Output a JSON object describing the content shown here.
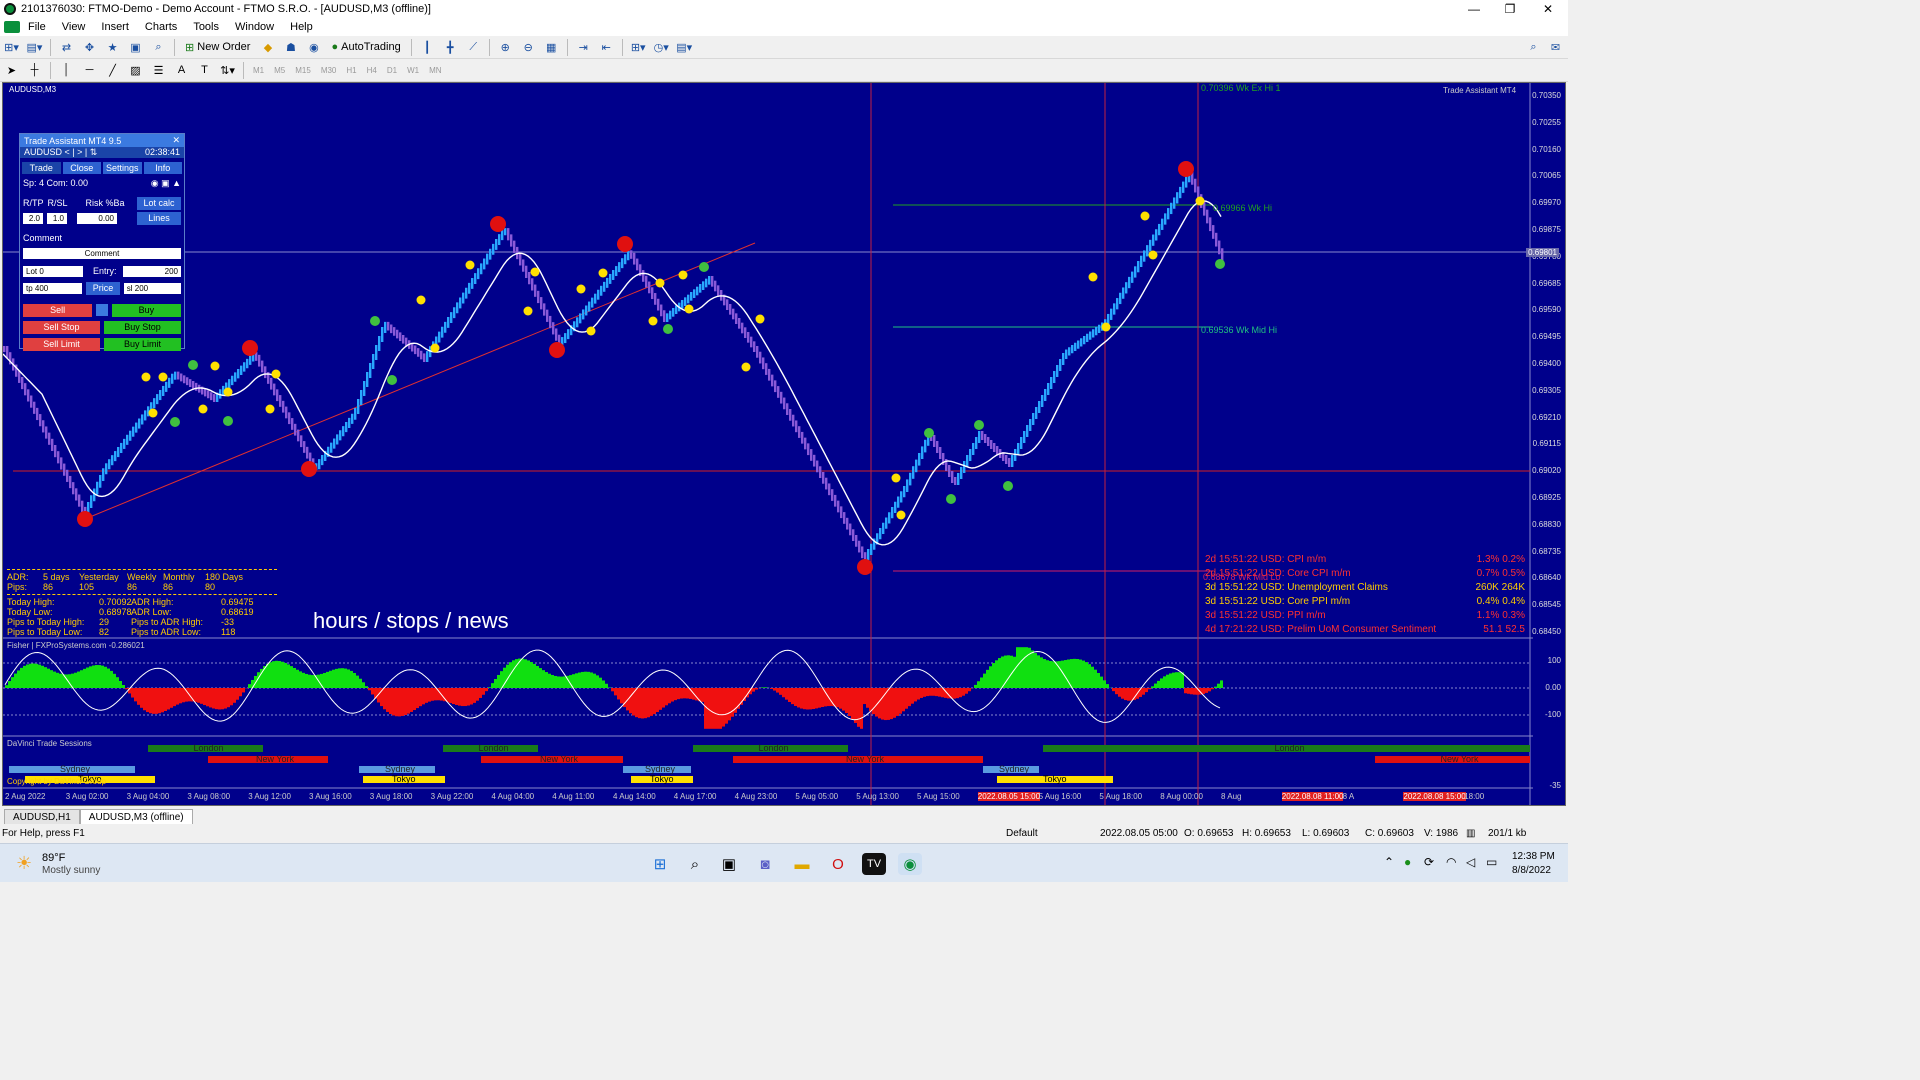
{
  "window": {
    "title": "2101376030: FTMO-Demo - Demo Account - FTMO S.R.O. - [AUDUSD,M3 (offline)]",
    "minimize": "—",
    "restore": "❐",
    "close": "✕"
  },
  "menu": [
    "File",
    "View",
    "Insert",
    "Charts",
    "Tools",
    "Window",
    "Help"
  ],
  "toolbar": {
    "new_order": "New Order",
    "autotrading": "AutoTrading"
  },
  "timeframes": [
    "M1",
    "M5",
    "M15",
    "M30",
    "H1",
    "H4",
    "D1",
    "W1",
    "MN"
  ],
  "chart": {
    "symbol_label": "AUDUSD,M3",
    "indicator_label": "Trade Assistant MT4",
    "watermark": "hours / stops / news",
    "price_axis": [
      "0.70350",
      "0.70255",
      "0.70160",
      "0.70065",
      "0.69970",
      "0.69875",
      "0.69780",
      "0.69685",
      "0.69590",
      "0.69495",
      "0.69400",
      "0.69305",
      "0.69210",
      "0.69115",
      "0.69020",
      "0.68925",
      "0.68830",
      "0.68735",
      "0.68640",
      "0.68545",
      "0.68450"
    ],
    "current_price": "0.69801",
    "levels": {
      "wk_hi": "0.69966 Wk Hi",
      "wk_mid_hi": "0.69536 Wk Mid Hi",
      "wk_ex_hi": "0.70396 Wk Ex Hi 1",
      "wk_mid_lo": "0.68678 Wk Mid Lo"
    },
    "time_axis": [
      "2 Aug 2022",
      "3 Aug 02:00",
      "3 Aug 04:00",
      "3 Aug 08:00",
      "3 Aug 12:00",
      "3 Aug 16:00",
      "3 Aug 18:00",
      "3 Aug 22:00",
      "4 Aug 04:00",
      "4 Aug 11:00",
      "4 Aug 14:00",
      "4 Aug 17:00",
      "4 Aug 23:00",
      "5 Aug 05:00",
      "5 Aug 13:00",
      "5 Aug 15:00",
      "2022.08.05 15:00",
      "5 Aug 16:00",
      "5 Aug 18:00",
      "8 Aug 00:00",
      "8 Aug",
      "2022.08.08 11:00",
      "8 A",
      "2022.08.08 15:00",
      "18:00"
    ],
    "fisher_label": "Fisher | FXProSystems.com -0.286021",
    "fisher_axis": [
      "100",
      "0.00",
      "-100"
    ],
    "sessions_label": "DaVinci Trade Sessions",
    "sessions": {
      "london": "London",
      "newyork": "New York",
      "sydney": "Sydney",
      "tokyo": "Tokyo"
    },
    "copyright": "Copyright by DaVinci Group",
    "sessions_axis": "-35"
  },
  "trade_assistant": {
    "title": "Trade Assistant MT4 9.5",
    "close": "✕",
    "symbol": "AUDUSD",
    "nav": "< | > | ⇅",
    "time": "02:38:41",
    "tabs": [
      "Trade",
      "Close",
      "Settings",
      "Info"
    ],
    "spread": "Sp: 4  Com: 0.00",
    "rtp": "R/TP",
    "rsl": "R/SL",
    "risk": "Risk %Ba",
    "rtp_val": "2.0",
    "rsl_val": "1.0",
    "risk_val": "0.00",
    "lot_calc": "Lot calc",
    "lines": "Lines",
    "comment_label": "Comment",
    "comment_value": "Comment",
    "lot_label": "Lot",
    "lot_value": "0",
    "entry_label": "Entry:",
    "entry_value": "200",
    "tp_label": "tp",
    "tp_value": "400",
    "price_btn": "Price",
    "sl_label": "sl",
    "sl_value": "200",
    "sell": "Sell",
    "buy": "Buy",
    "sell_stop": "Sell Stop",
    "buy_stop": "Buy Stop",
    "sell_limit": "Sell Limit",
    "buy_limit": "Buy Limit"
  },
  "adr": {
    "header": [
      "ADR:",
      "5 days",
      "Yesterday",
      "Weekly",
      "Monthly",
      "180 Days"
    ],
    "pips": [
      "Pips:",
      "86",
      "105",
      "86",
      "86",
      "80"
    ],
    "rows": [
      [
        "Today High:",
        "0.70092",
        "ADR High:",
        "0.69475"
      ],
      [
        "Today Low:",
        "0.68978",
        "ADR Low:",
        "0.68619"
      ],
      [
        "Pips to Today High:",
        "29",
        "Pips to ADR High:",
        "-33"
      ],
      [
        "Pips to Today Low:",
        "82",
        "Pips to ADR Low:",
        "118"
      ]
    ]
  },
  "news": [
    {
      "t": "2d 15:51:22",
      "ev": "USD: CPI m/m",
      "f": "1.3%",
      "p": "0.2%",
      "c": "#ff3030"
    },
    {
      "t": "2d 15:51:22",
      "ev": "USD: Core CPI m/m",
      "f": "0.7%",
      "p": "0.5%",
      "c": "#ff3030"
    },
    {
      "t": "3d 15:51:22",
      "ev": "USD: Unemployment Claims",
      "f": "260K",
      "p": "264K",
      "c": "#ffcc00"
    },
    {
      "t": "3d 15:51:22",
      "ev": "USD: Core PPI m/m",
      "f": "0.4%",
      "p": "0.4%",
      "c": "#ffcc00"
    },
    {
      "t": "3d 15:51:22",
      "ev": "USD: PPI m/m",
      "f": "1.1%",
      "p": "0.3%",
      "c": "#ff3030"
    },
    {
      "t": "4d 17:21:22",
      "ev": "USD: Prelim UoM Consumer Sentiment",
      "f": "51.1",
      "p": "52.5",
      "c": "#ff3030"
    }
  ],
  "chart_tabs": [
    "AUDUSD,H1",
    "AUDUSD,M3 (offline)"
  ],
  "status": {
    "help": "For Help, press F1",
    "profile": "Default",
    "datetime": "2022.08.05 05:00",
    "open": "O: 0.69653",
    "high": "H: 0.69653",
    "low": "L: 0.69603",
    "close": "C: 0.69603",
    "volume": "V: 1986",
    "traffic": "201/1 kb"
  },
  "taskbar": {
    "temp": "89°F",
    "weather": "Mostly sunny",
    "time": "12:38 PM",
    "date": "8/8/2022"
  }
}
